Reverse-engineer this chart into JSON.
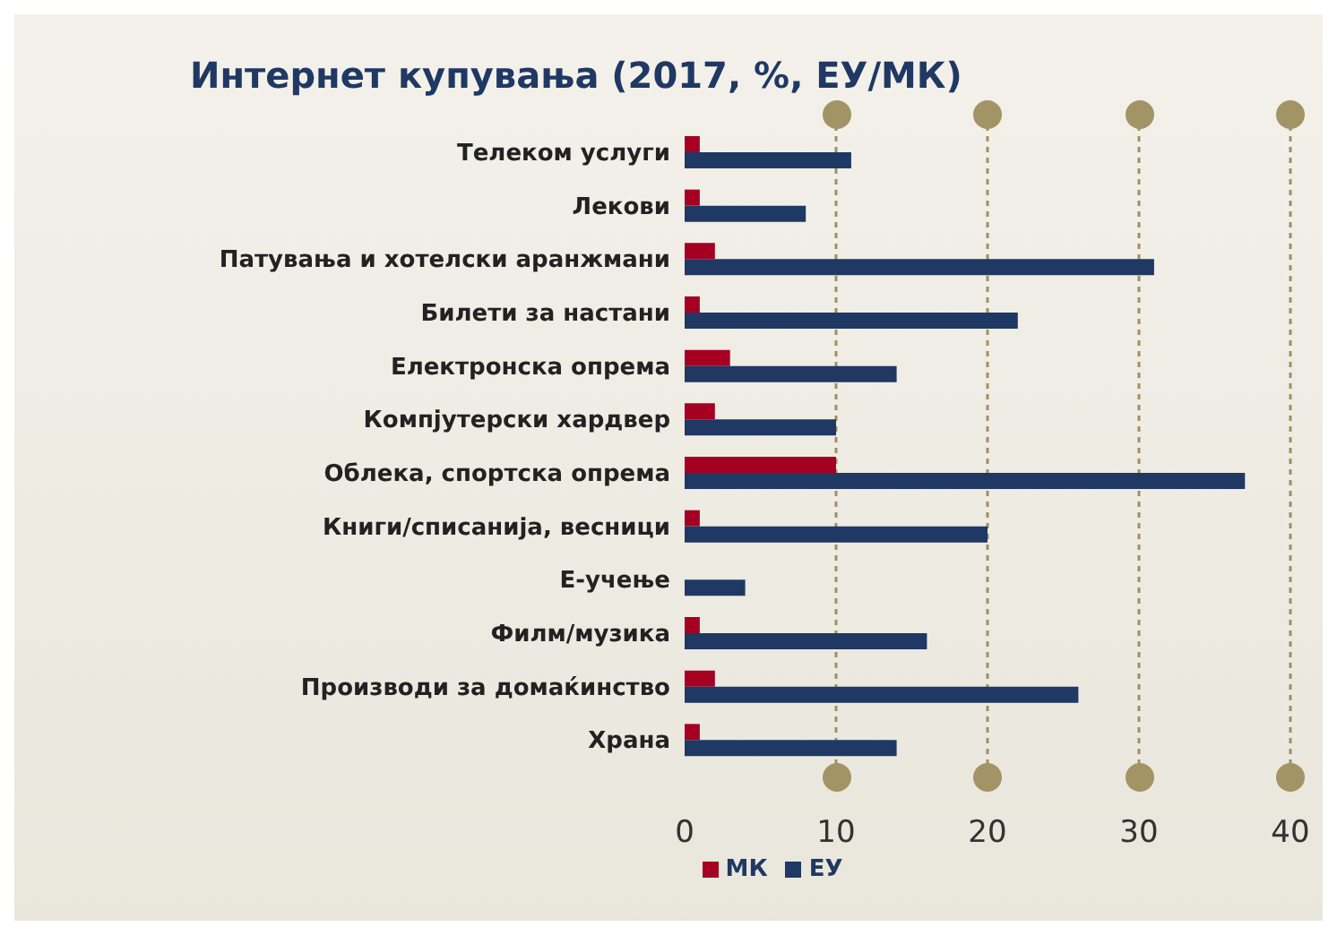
{
  "chart_data": {
    "type": "bar",
    "orientation": "horizontal",
    "title": "Интернет купувања (2017, %, ЕУ/МК)",
    "categories": [
      "Телеком услуги",
      "Лекови",
      "Патувања и хотелски аранжмани",
      "Билети за настани",
      "Електронска опрема",
      "Компјутерски хардвер",
      "Облека, спортска опрема",
      "Книги/списанија, весници",
      "Е-учење",
      "Филм/музика",
      "Производи за домаќинство",
      "Храна"
    ],
    "series": [
      {
        "name": "МК",
        "color": "#a50021",
        "values": [
          1,
          1,
          2,
          1,
          3,
          2,
          10,
          1,
          0,
          1,
          2,
          1
        ]
      },
      {
        "name": "ЕУ",
        "color": "#1f3864",
        "values": [
          11,
          8,
          31,
          22,
          14,
          10,
          37,
          20,
          4,
          16,
          26,
          14
        ]
      }
    ],
    "xlim": [
      0,
      40
    ],
    "xticks": [
      0,
      10,
      20,
      30,
      40
    ],
    "grid": "x",
    "legend": "bottom"
  }
}
